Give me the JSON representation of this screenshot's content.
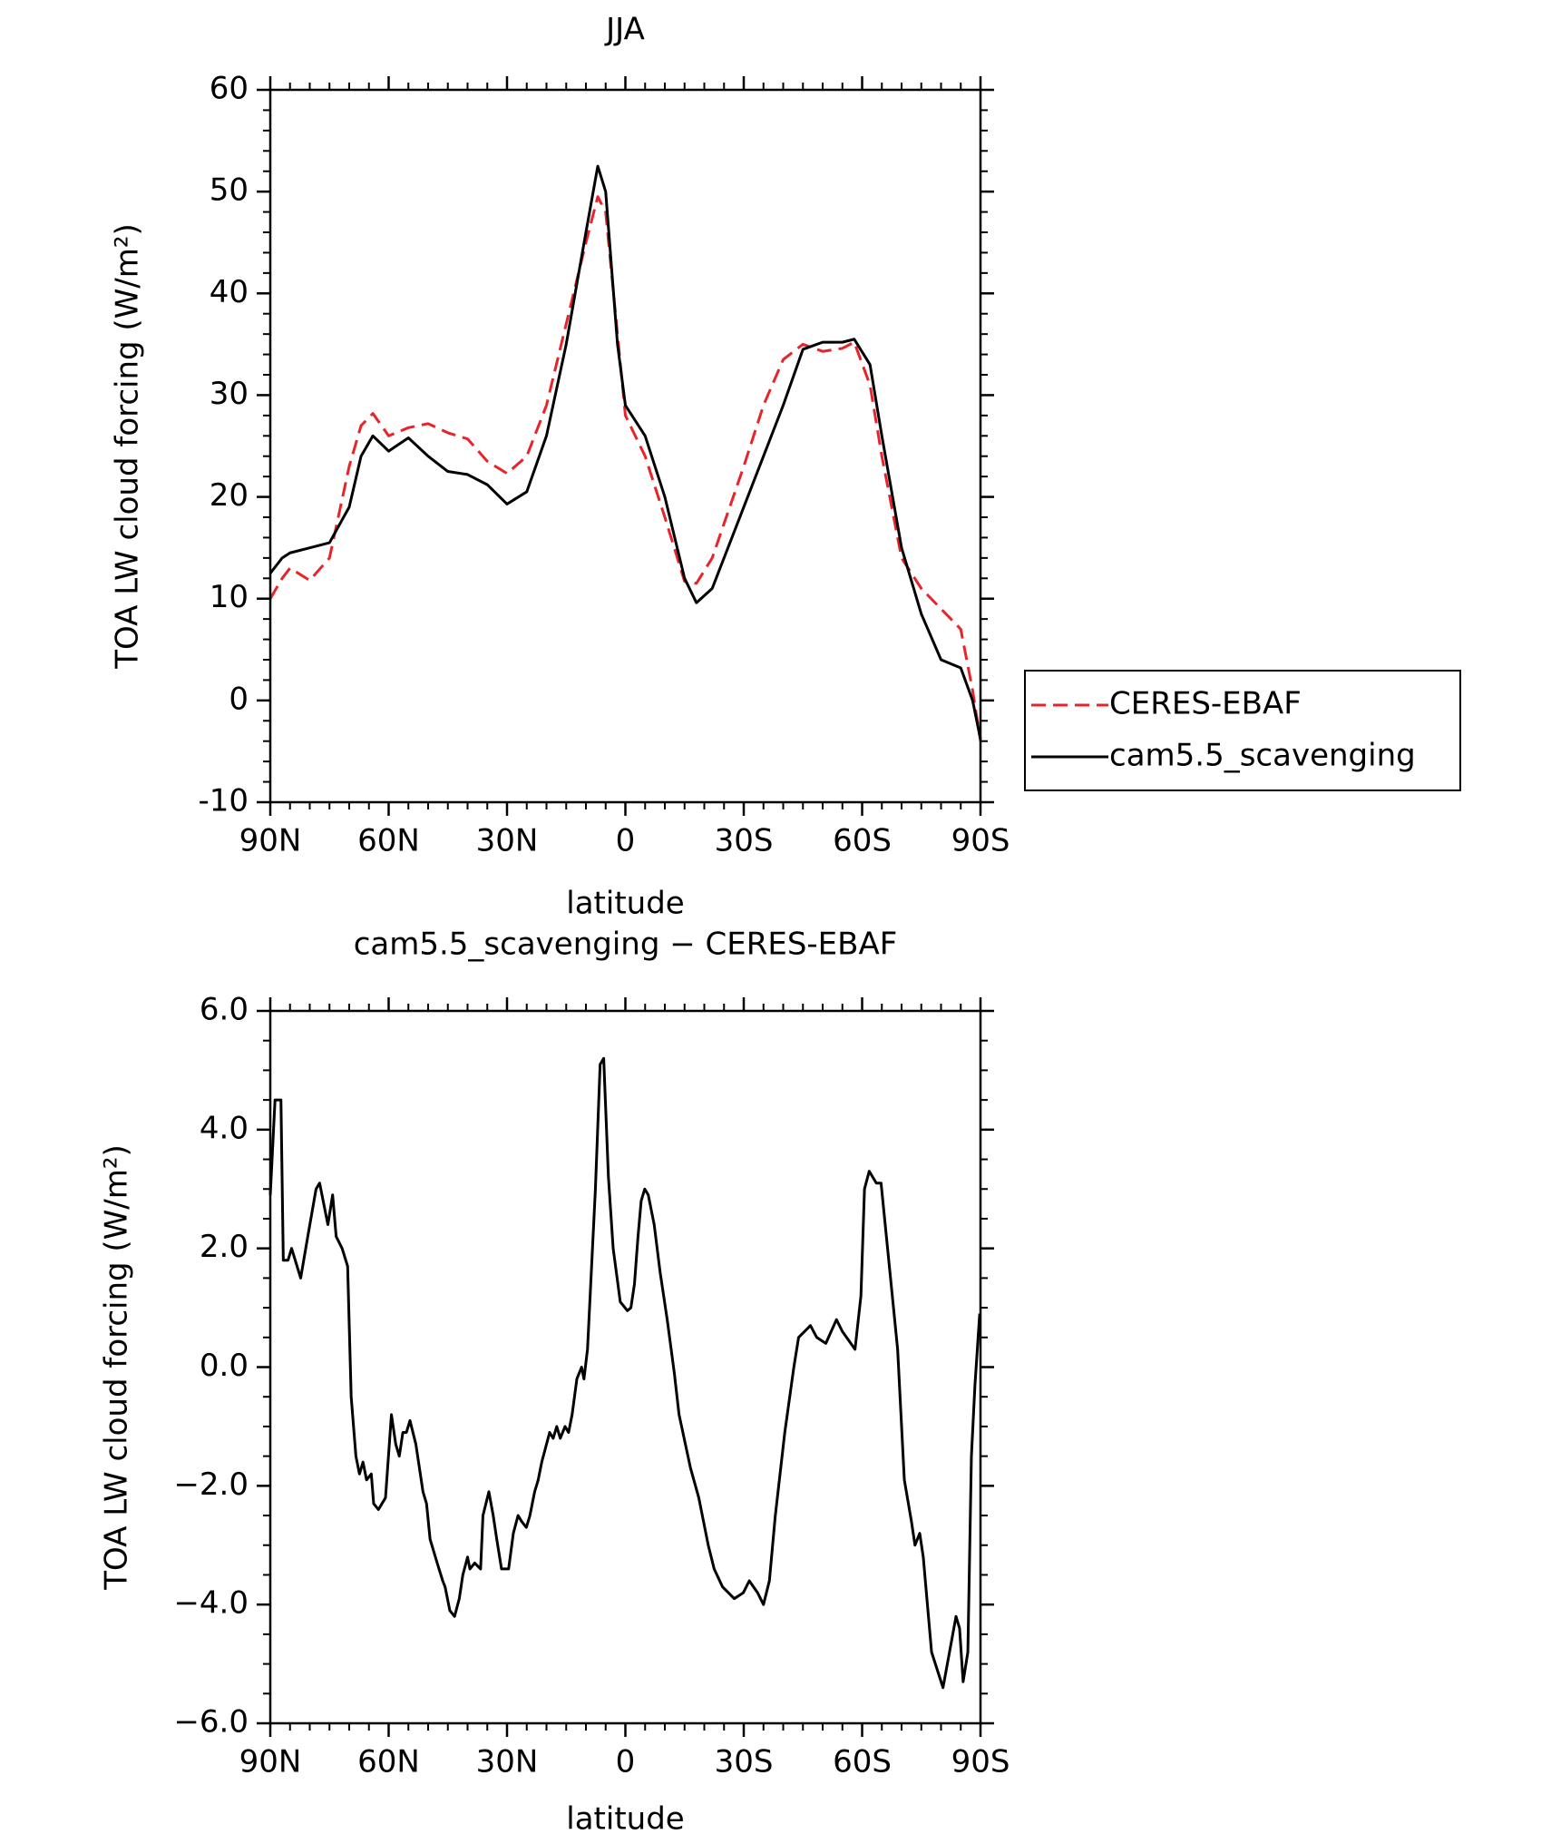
{
  "chart_data": [
    {
      "type": "line",
      "title": "JJA",
      "xlabel": "latitude",
      "ylabel": "TOA LW cloud forcing (W/m²)",
      "x": [
        90,
        87,
        85,
        80,
        75,
        70,
        67,
        64,
        60,
        55,
        50,
        45,
        40,
        35,
        30,
        25,
        20,
        15,
        10,
        7,
        5,
        2,
        0,
        -5,
        -10,
        -15,
        -18,
        -22,
        -30,
        -35,
        -40,
        -45,
        -50,
        -55,
        -58,
        -62,
        -65,
        -70,
        -75,
        -80,
        -85,
        -88,
        -90
      ],
      "series": [
        {
          "name": "CERES-EBAF",
          "color": "#e8242a",
          "dash": true,
          "values": [
            10,
            12,
            13,
            11.8,
            14,
            23,
            27,
            28.2,
            26,
            26.8,
            27.2,
            26.3,
            25.7,
            23.5,
            22.3,
            24,
            29,
            37,
            45,
            49.5,
            48,
            36,
            28,
            24,
            18,
            11.7,
            11.5,
            14,
            23,
            29,
            33.5,
            35,
            34.3,
            34.6,
            35.2,
            31,
            24,
            14,
            11,
            9,
            7,
            1,
            -4
          ]
        },
        {
          "name": "cam5.5_scavenging",
          "color": "#000000",
          "dash": false,
          "values": [
            12.5,
            14,
            14.5,
            15,
            15.5,
            19,
            24,
            26,
            24.5,
            25.8,
            24,
            22.5,
            22.2,
            21.2,
            19.3,
            20.5,
            26,
            35,
            46,
            52.5,
            50,
            35,
            29,
            26,
            20,
            12,
            9.6,
            11,
            19,
            24,
            29,
            34.5,
            35.2,
            35.2,
            35.5,
            33,
            26,
            15,
            8.5,
            4,
            3.2,
            0,
            -3.8
          ]
        }
      ],
      "xlim": [
        90,
        -90
      ],
      "xticks": [
        {
          "value": 90,
          "label": "90N"
        },
        {
          "value": 60,
          "label": "60N"
        },
        {
          "value": 30,
          "label": "30N"
        },
        0,
        {
          "value": -30,
          "label": "30S"
        },
        {
          "value": -60,
          "label": "60S"
        },
        {
          "value": -90,
          "label": "90S"
        }
      ],
      "ylim": [
        -10,
        60
      ],
      "yticks": [
        -10,
        0,
        10,
        20,
        30,
        40,
        50,
        60
      ],
      "legend": "right"
    },
    {
      "type": "line",
      "title": "cam5.5_scavenging − CERES-EBAF",
      "xlabel": "latitude",
      "ylabel": "TOA LW cloud forcing (W/m²)",
      "x": [
        90,
        88.8,
        87.3,
        86.7,
        85.5,
        84.6,
        82.3,
        80.5,
        78.4,
        77.5,
        75.4,
        74.2,
        73.3,
        71.8,
        70.4,
        69.5,
        68.3,
        67.4,
        66.5,
        65.6,
        64.4,
        63.8,
        62.6,
        60.8,
        59.3,
        58.2,
        57.3,
        56.4,
        55.5,
        54.6,
        53.1,
        51.3,
        50.4,
        49.5,
        47.7,
        46.3,
        45.7,
        44.5,
        43.3,
        42.1,
        41.2,
        40,
        39.4,
        38.2,
        36.7,
        36.1,
        34.6,
        33.5,
        32.6,
        31.4,
        29.6,
        28.4,
        27.2,
        26.3,
        25.1,
        24.2,
        23,
        22.1,
        21.2,
        20.4,
        19.2,
        18.3,
        17.4,
        16.5,
        15.3,
        14.4,
        13.5,
        12.3,
        11.1,
        10.5,
        9.6,
        7.6,
        6.4,
        5.5,
        4.3,
        3.1,
        1.3,
        -0.5,
        -1.4,
        -2.3,
        -3.2,
        -4,
        -4.9,
        -5.8,
        -7.3,
        -8.8,
        -10.6,
        -12.4,
        -13.6,
        -16.5,
        -18.6,
        -21,
        -22.5,
        -24.6,
        -27.6,
        -29.9,
        -31.4,
        -33.5,
        -35,
        -36.5,
        -38,
        -40.4,
        -42.7,
        -43.9,
        -46.9,
        -48.5,
        -50.8,
        -53.5,
        -55,
        -58.2,
        -59.7,
        -60.6,
        -61.8,
        -63.6,
        -64.8,
        -66,
        -69,
        -70.7,
        -72.5,
        -73.4,
        -74.6,
        -75.5,
        -77.6,
        -80.5,
        -83.8,
        -84.7,
        -85.6,
        -86.8,
        -87.7,
        -88.6,
        -89.8
      ],
      "series": [
        {
          "color": "#000000",
          "dash": false,
          "values": [
            2.9,
            4.5,
            4.5,
            1.8,
            1.8,
            2.0,
            1.5,
            2.2,
            3.0,
            3.1,
            2.4,
            2.9,
            2.2,
            2.0,
            1.7,
            -0.5,
            -1.5,
            -1.8,
            -1.6,
            -1.9,
            -1.8,
            -2.3,
            -2.4,
            -2.2,
            -0.8,
            -1.3,
            -1.5,
            -1.1,
            -1.1,
            -0.9,
            -1.3,
            -2.1,
            -2.3,
            -2.9,
            -3.3,
            -3.6,
            -3.7,
            -4.1,
            -4.2,
            -3.9,
            -3.5,
            -3.2,
            -3.4,
            -3.3,
            -3.4,
            -2.5,
            -2.1,
            -2.5,
            -2.9,
            -3.4,
            -3.4,
            -2.8,
            -2.5,
            -2.6,
            -2.7,
            -2.5,
            -2.1,
            -1.9,
            -1.6,
            -1.4,
            -1.1,
            -1.2,
            -1.0,
            -1.2,
            -1.0,
            -1.1,
            -0.8,
            -0.2,
            0.0,
            -0.2,
            0.3,
            3.0,
            5.1,
            5.2,
            3.2,
            2.0,
            1.1,
            0.95,
            1.0,
            1.4,
            2.2,
            2.8,
            3.0,
            2.9,
            2.4,
            1.6,
            0.8,
            -0.1,
            -0.8,
            -1.7,
            -2.2,
            -3.0,
            -3.4,
            -3.7,
            -3.9,
            -3.8,
            -3.6,
            -3.8,
            -4.0,
            -3.6,
            -2.5,
            -1.1,
            0.0,
            0.5,
            0.7,
            0.5,
            0.4,
            0.8,
            0.6,
            0.3,
            1.2,
            3.0,
            3.3,
            3.1,
            3.1,
            2.3,
            0.3,
            -1.9,
            -2.6,
            -3.0,
            -2.8,
            -3.2,
            -4.8,
            -5.4,
            -4.2,
            -4.4,
            -5.3,
            -4.8,
            -1.5,
            -0.3,
            0.9
          ]
        }
      ],
      "xlim": [
        90,
        -90
      ],
      "xticks": [
        {
          "value": 90,
          "label": "90N"
        },
        {
          "value": 60,
          "label": "60N"
        },
        {
          "value": 30,
          "label": "30N"
        },
        0,
        {
          "value": -30,
          "label": "30S"
        },
        {
          "value": -60,
          "label": "60S"
        },
        {
          "value": -90,
          "label": "90S"
        }
      ],
      "ylim": [
        -6,
        6
      ],
      "yticks": [
        {
          "value": -6,
          "label": "−6.0"
        },
        {
          "value": -4,
          "label": "−4.0"
        },
        {
          "value": -2,
          "label": "−2.0"
        },
        {
          "value": 0,
          "label": "0.0"
        },
        {
          "value": 2,
          "label": "2.0"
        },
        {
          "value": 4,
          "label": "4.0"
        },
        {
          "value": 6,
          "label": "6.0"
        }
      ]
    }
  ]
}
